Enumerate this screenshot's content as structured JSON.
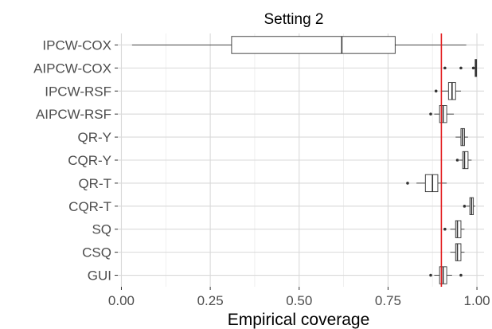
{
  "chart_data": {
    "type": "boxplot",
    "orientation": "horizontal",
    "title": "Setting 2",
    "xlabel": "Empirical coverage",
    "ylabel": "",
    "xlim": [
      0,
      1.02
    ],
    "x_ticks": [
      0.0,
      0.25,
      0.5,
      0.75,
      1.0
    ],
    "x_tick_labels": [
      "0.00",
      "0.25",
      "0.50",
      "0.75",
      "1.00"
    ],
    "grid": true,
    "reference_line": {
      "x": 0.9,
      "color": "#e31a1c"
    },
    "categories": [
      "IPCW-COX",
      "AIPCW-COX",
      "IPCW-RSF",
      "AIPCW-RSF",
      "QR-Y",
      "CQR-Y",
      "QR-T",
      "CQR-T",
      "SQ",
      "CSQ",
      "GUI"
    ],
    "boxes": [
      {
        "name": "IPCW-COX",
        "whisker_low": 0.03,
        "q1": 0.31,
        "median": 0.62,
        "q3": 0.77,
        "whisker_high": 0.97,
        "outliers": []
      },
      {
        "name": "AIPCW-COX",
        "whisker_low": 0.99,
        "q1": 0.995,
        "median": 0.997,
        "q3": 0.999,
        "whisker_high": 1.0,
        "outliers": [
          0.91,
          0.955,
          0.99
        ]
      },
      {
        "name": "IPCW-RSF",
        "whisker_low": 0.9,
        "q1": 0.92,
        "median": 0.93,
        "q3": 0.94,
        "whisker_high": 0.955,
        "outliers": [
          0.885
        ]
      },
      {
        "name": "AIPCW-RSF",
        "whisker_low": 0.88,
        "q1": 0.895,
        "median": 0.905,
        "q3": 0.915,
        "whisker_high": 0.935,
        "outliers": [
          0.87
        ]
      },
      {
        "name": "QR-Y",
        "whisker_low": 0.94,
        "q1": 0.955,
        "median": 0.96,
        "q3": 0.965,
        "whisker_high": 0.975,
        "outliers": []
      },
      {
        "name": "CQR-Y",
        "whisker_low": 0.95,
        "q1": 0.96,
        "median": 0.965,
        "q3": 0.975,
        "whisker_high": 0.985,
        "outliers": [
          0.945
        ]
      },
      {
        "name": "QR-T",
        "whisker_low": 0.83,
        "q1": 0.855,
        "median": 0.875,
        "q3": 0.89,
        "whisker_high": 0.915,
        "outliers": [
          0.805
        ]
      },
      {
        "name": "CQR-T",
        "whisker_low": 0.97,
        "q1": 0.98,
        "median": 0.985,
        "q3": 0.99,
        "whisker_high": 0.995,
        "outliers": [
          0.965
        ]
      },
      {
        "name": "SQ",
        "whisker_low": 0.925,
        "q1": 0.94,
        "median": 0.945,
        "q3": 0.955,
        "whisker_high": 0.965,
        "outliers": [
          0.91
        ]
      },
      {
        "name": "CSQ",
        "whisker_low": 0.925,
        "q1": 0.94,
        "median": 0.945,
        "q3": 0.955,
        "whisker_high": 0.965,
        "outliers": []
      },
      {
        "name": "GUI",
        "whisker_low": 0.88,
        "q1": 0.895,
        "median": 0.905,
        "q3": 0.915,
        "whisker_high": 0.93,
        "outliers": [
          0.87,
          0.955
        ]
      }
    ],
    "colors": {
      "background": "#ffffff",
      "grid": "#d9d9d9",
      "box_outline": "#333333",
      "box_fill": "#ffffff",
      "outlier": "#333333"
    }
  }
}
